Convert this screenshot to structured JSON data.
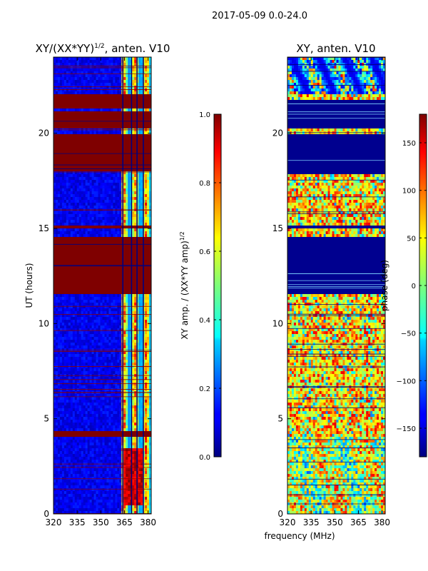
{
  "figure": {
    "suptitle": "2017-05-09 0.0-24.0",
    "xlabel_shared": "frequency (MHz)"
  },
  "chart_data": [
    {
      "type": "heatmap",
      "title_main": "XY/(XX*YY)",
      "title_sup": "1/2",
      "title_rest": ", anten. V10",
      "ylabel": "UT (hours)",
      "xlim": [
        320,
        382
      ],
      "ylim": [
        0,
        24
      ],
      "xticks": [
        320,
        335,
        350,
        365,
        380
      ],
      "yticks": [
        0,
        5,
        10,
        15,
        20
      ],
      "colormap": "jet",
      "colorbar": {
        "label_main": "XY amp. / (XX*YY amp)",
        "label_sup": "1/2",
        "range": [
          0.0,
          1.0
        ],
        "ticks": [
          0.0,
          0.2,
          0.4,
          0.6,
          0.8,
          1.0
        ],
        "tick_labels": [
          "0.0",
          "0.2",
          "0.4",
          "0.6",
          "0.8",
          "1.0"
        ]
      },
      "saturated_time_bands_hours": [
        [
          11.6,
          14.6
        ],
        [
          15.0,
          15.2
        ],
        [
          18.0,
          20.0
        ],
        [
          20.2,
          21.1
        ],
        [
          21.3,
          22.0
        ],
        [
          4.0,
          4.3
        ]
      ],
      "bright_frequency_band_mhz": [
        363,
        382
      ]
    },
    {
      "type": "heatmap",
      "title": "XY, anten. V10",
      "xlim": [
        320,
        382
      ],
      "ylim": [
        0,
        24
      ],
      "xticks": [
        320,
        335,
        350,
        365,
        380
      ],
      "yticks": [
        0,
        5,
        10,
        15,
        20
      ],
      "colormap": "jet",
      "colorbar": {
        "label": "phase (deg)",
        "range": [
          -180,
          180
        ],
        "ticks": [
          -150,
          -100,
          -50,
          0,
          50,
          100,
          150
        ],
        "tick_labels": [
          "−150",
          "−100",
          "−50",
          "0",
          "50",
          "100",
          "150"
        ]
      },
      "dark_time_bands_hours": [
        [
          11.6,
          14.6
        ],
        [
          15.0,
          15.2
        ],
        [
          17.9,
          20.0
        ],
        [
          20.2,
          21.8
        ]
      ]
    }
  ]
}
